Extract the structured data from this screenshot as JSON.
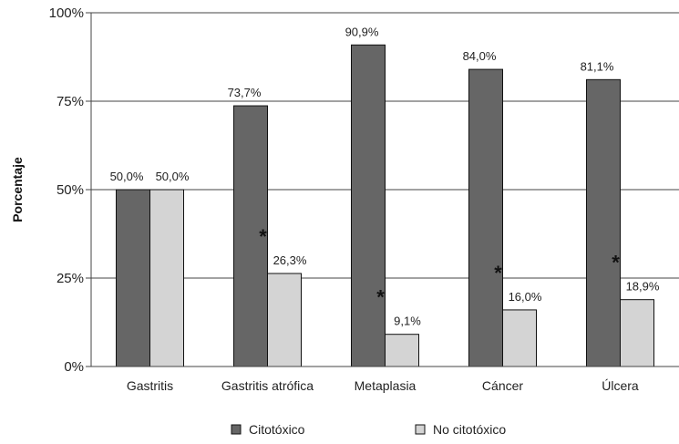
{
  "chart_data": {
    "type": "bar",
    "title": "",
    "xlabel": "",
    "ylabel": "Porcentaje",
    "ylim": [
      0,
      100
    ],
    "yticks": [
      "0%",
      "25%",
      "50%",
      "75%",
      "100%"
    ],
    "grid": true,
    "legend_position": "bottom",
    "categories": [
      "Gastritis",
      "Gastritis atrófica",
      "Metaplasia",
      "Cáncer",
      "Úlcera"
    ],
    "series": [
      {
        "name": "Citotóxico",
        "color": "#666666",
        "values": [
          50.0,
          73.7,
          90.9,
          84.0,
          81.1
        ],
        "labels": [
          "50,0%",
          "73,7%",
          "90,9%",
          "84,0%",
          "81,1%"
        ]
      },
      {
        "name": "No citotóxico",
        "color": "#d4d4d4",
        "values": [
          50.0,
          26.3,
          9.1,
          16.0,
          18.9
        ],
        "labels": [
          "50,0%",
          "26,3%",
          "9,1%",
          "16,0%",
          "18,9%"
        ]
      }
    ],
    "significance_marks": [
      {
        "category": "Gastritis atrófica",
        "symbol": "*"
      },
      {
        "category": "Metaplasia",
        "symbol": "*"
      },
      {
        "category": "Cáncer",
        "symbol": "*"
      },
      {
        "category": "Úlcera",
        "symbol": "*"
      }
    ]
  }
}
